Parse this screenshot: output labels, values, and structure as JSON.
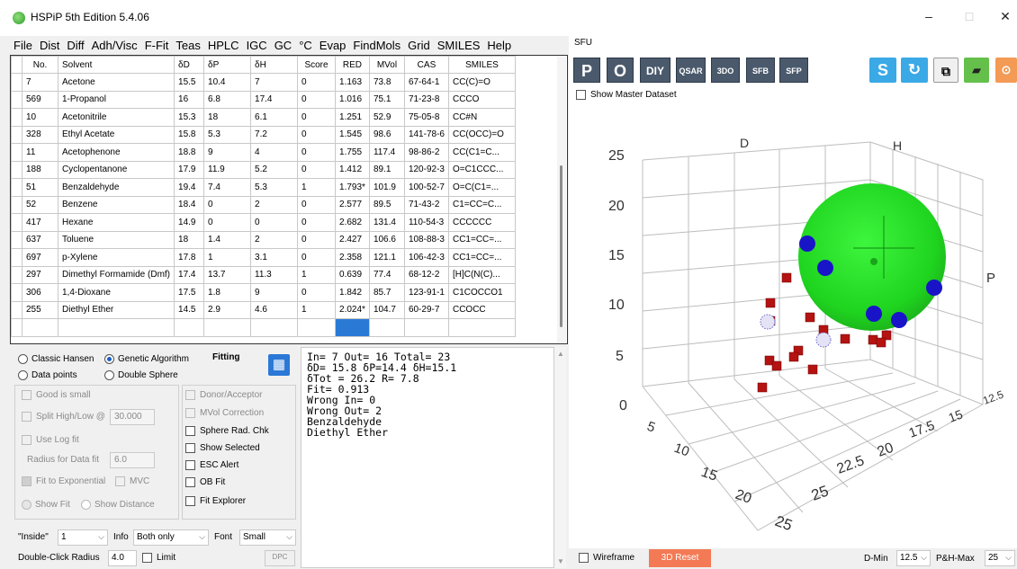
{
  "window": {
    "title": "HSPiP 5th Edition 5.4.06",
    "minimize": "–",
    "maximize": "□",
    "close": "✕"
  },
  "menu": [
    "File",
    "Dist",
    "Diff",
    "Adh/Visc",
    "F-Fit",
    "Teas",
    "HPLC",
    "IGC",
    "GC",
    "°C",
    "Evap",
    "FindMols",
    "Grid",
    "SMILES",
    "Help"
  ],
  "table": {
    "columns": [
      "No.",
      "Solvent",
      "δD",
      "δP",
      "δH",
      "Score",
      "RED",
      "MVol",
      "CAS",
      "SMILES"
    ],
    "rows": [
      [
        "7",
        "Acetone",
        "15.5",
        "10.4",
        "7",
        "0",
        "1.163",
        "73.8",
        "67-64-1",
        "CC(C)=O"
      ],
      [
        "569",
        "1-Propanol",
        "16",
        "6.8",
        "17.4",
        "0",
        "1.016",
        "75.1",
        "71-23-8",
        "CCCO"
      ],
      [
        "10",
        "Acetonitrile",
        "15.3",
        "18",
        "6.1",
        "0",
        "1.251",
        "52.9",
        "75-05-8",
        "CC#N"
      ],
      [
        "328",
        "Ethyl Acetate",
        "15.8",
        "5.3",
        "7.2",
        "0",
        "1.545",
        "98.6",
        "141-78-6",
        "CC(OCC)=O"
      ],
      [
        "11",
        "Acetophenone",
        "18.8",
        "9",
        "4",
        "0",
        "1.755",
        "117.4",
        "98-86-2",
        "CC(C1=C..."
      ],
      [
        "188",
        "Cyclopentanone",
        "17.9",
        "11.9",
        "5.2",
        "0",
        "1.412",
        "89.1",
        "120-92-3",
        "O=C1CCC..."
      ],
      [
        "51",
        "Benzaldehyde",
        "19.4",
        "7.4",
        "5.3",
        "1",
        "1.793*",
        "101.9",
        "100-52-7",
        "O=C(C1=..."
      ],
      [
        "52",
        "Benzene",
        "18.4",
        "0",
        "2",
        "0",
        "2.577",
        "89.5",
        "71-43-2",
        "C1=CC=C..."
      ],
      [
        "417",
        "Hexane",
        "14.9",
        "0",
        "0",
        "0",
        "2.682",
        "131.4",
        "110-54-3",
        "CCCCCC"
      ],
      [
        "637",
        "Toluene",
        "18",
        "1.4",
        "2",
        "0",
        "2.427",
        "106.6",
        "108-88-3",
        "CC1=CC=..."
      ],
      [
        "697",
        "p-Xylene",
        "17.8",
        "1",
        "3.1",
        "0",
        "2.358",
        "121.1",
        "106-42-3",
        "CC1=CC=..."
      ],
      [
        "297",
        "Dimethyl Formamide (Dmf)",
        "17.4",
        "13.7",
        "11.3",
        "1",
        "0.639",
        "77.4",
        "68-12-2",
        "[H]C(N(C)..."
      ],
      [
        "306",
        "1,4-Dioxane",
        "17.5",
        "1.8",
        "9",
        "0",
        "1.842",
        "85.7",
        "123-91-1",
        "C1COCCO1"
      ],
      [
        "255",
        "Diethyl Ether",
        "14.5",
        "2.9",
        "4.6",
        "1",
        "2.024*",
        "104.7",
        "60-29-7",
        "CCOCC"
      ]
    ]
  },
  "fitting": {
    "classic_hansen": "Classic Hansen",
    "genetic_algorithm": "Genetic Algorithm",
    "fitting_label": "Fitting",
    "data_points": "Data points",
    "double_sphere": "Double Sphere",
    "good_is_small": "Good is small",
    "split_high_low": "Split High/Low @",
    "split_value": "30.000",
    "use_log_fit": "Use Log fit",
    "radius_for_data_fit": "Radius for Data fit",
    "radius_value": "6.0",
    "fit_to_exponential": "Fit to Exponential",
    "mvc": "MVC",
    "show_fit": "Show Fit",
    "show_distance": "Show Distance",
    "donor_acceptor": "Donor/Acceptor",
    "mvol_correction": "MVol Correction",
    "sphere_rad_chk": "Sphere Rad. Chk",
    "show_selected": "Show Selected",
    "esc_alert": "ESC Alert",
    "ob_fit": "OB Fit",
    "fit_explorer": "Fit Explorer",
    "inside_label": "\"Inside\"",
    "inside_value": "1",
    "info_label": "Info",
    "info_value": "Both only",
    "font_label": "Font",
    "font_value": "Small",
    "double_click_radius": "Double-Click Radius",
    "dcr_value": "4.0",
    "limit": "Limit",
    "dpc": "DPC"
  },
  "results": {
    "lines": [
      "In= 7 Out= 16 Total= 23",
      "δD= 15.8 δP=14.4 δH=15.1",
      "δTot = 26.2 R= 7.8",
      "Fit= 0.913",
      "Wrong In= 0",
      "Wrong Out= 2",
      "Benzaldehyde",
      "Diethyl Ether"
    ]
  },
  "right": {
    "tab": "SFU",
    "toolbar": [
      "P",
      "O",
      "DIY",
      "QSAR",
      "3DO",
      "SFB",
      "SFP"
    ],
    "show_master": "Show Master Dataset",
    "wireframe": "Wireframe",
    "reset": "3D Reset",
    "dmin_label": "D-Min",
    "dmin_value": "12.5",
    "phmax_label": "P&H-Max",
    "phmax_value": "25"
  },
  "plot": {
    "axis_d": "D",
    "axis_h": "H",
    "axis_p": "P",
    "y_ticks": [
      "25",
      "20",
      "15",
      "10",
      "5",
      "0"
    ],
    "bottom_ticks": [
      "5",
      "10",
      "15",
      "20",
      "25"
    ],
    "right_ticks": [
      "25",
      "22.5",
      "20",
      "17.5",
      "15",
      "12.5"
    ],
    "sphere_color": "#1fd41f",
    "inside_color": "#1a14c8",
    "outside_color": "#b01010"
  }
}
